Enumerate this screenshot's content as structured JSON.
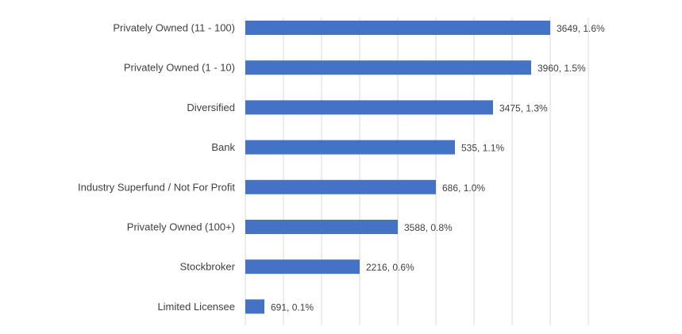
{
  "chart_data": {
    "type": "bar",
    "orientation": "horizontal",
    "categories": [
      "Privately Owned (11 - 100)",
      "Privately Owned (1 - 10)",
      "Diversified",
      "Bank",
      "Industry Superfund / Not For Profit",
      "Privately Owned (100+)",
      "Stockbroker",
      "Limited Licensee"
    ],
    "values": [
      1.6,
      1.5,
      1.3,
      1.1,
      1.0,
      0.8,
      0.6,
      0.1
    ],
    "counts": [
      3649,
      3960,
      3475,
      535,
      686,
      3588,
      2216,
      691
    ],
    "data_labels": [
      "3649, 1.6%",
      "3960, 1.5%",
      "3475, 1.3%",
      "535, 1.1%",
      "686, 1.0%",
      "3588, 0.8%",
      "2216, 0.6%",
      "691, 0.1%"
    ],
    "value_unit": "%",
    "xlim": [
      0,
      1.8
    ],
    "grid_step": 0.2,
    "grid": true,
    "bar_color": "#4472C4",
    "grid_color": "#D9D9D9",
    "title": "",
    "xlabel": "",
    "ylabel": ""
  }
}
